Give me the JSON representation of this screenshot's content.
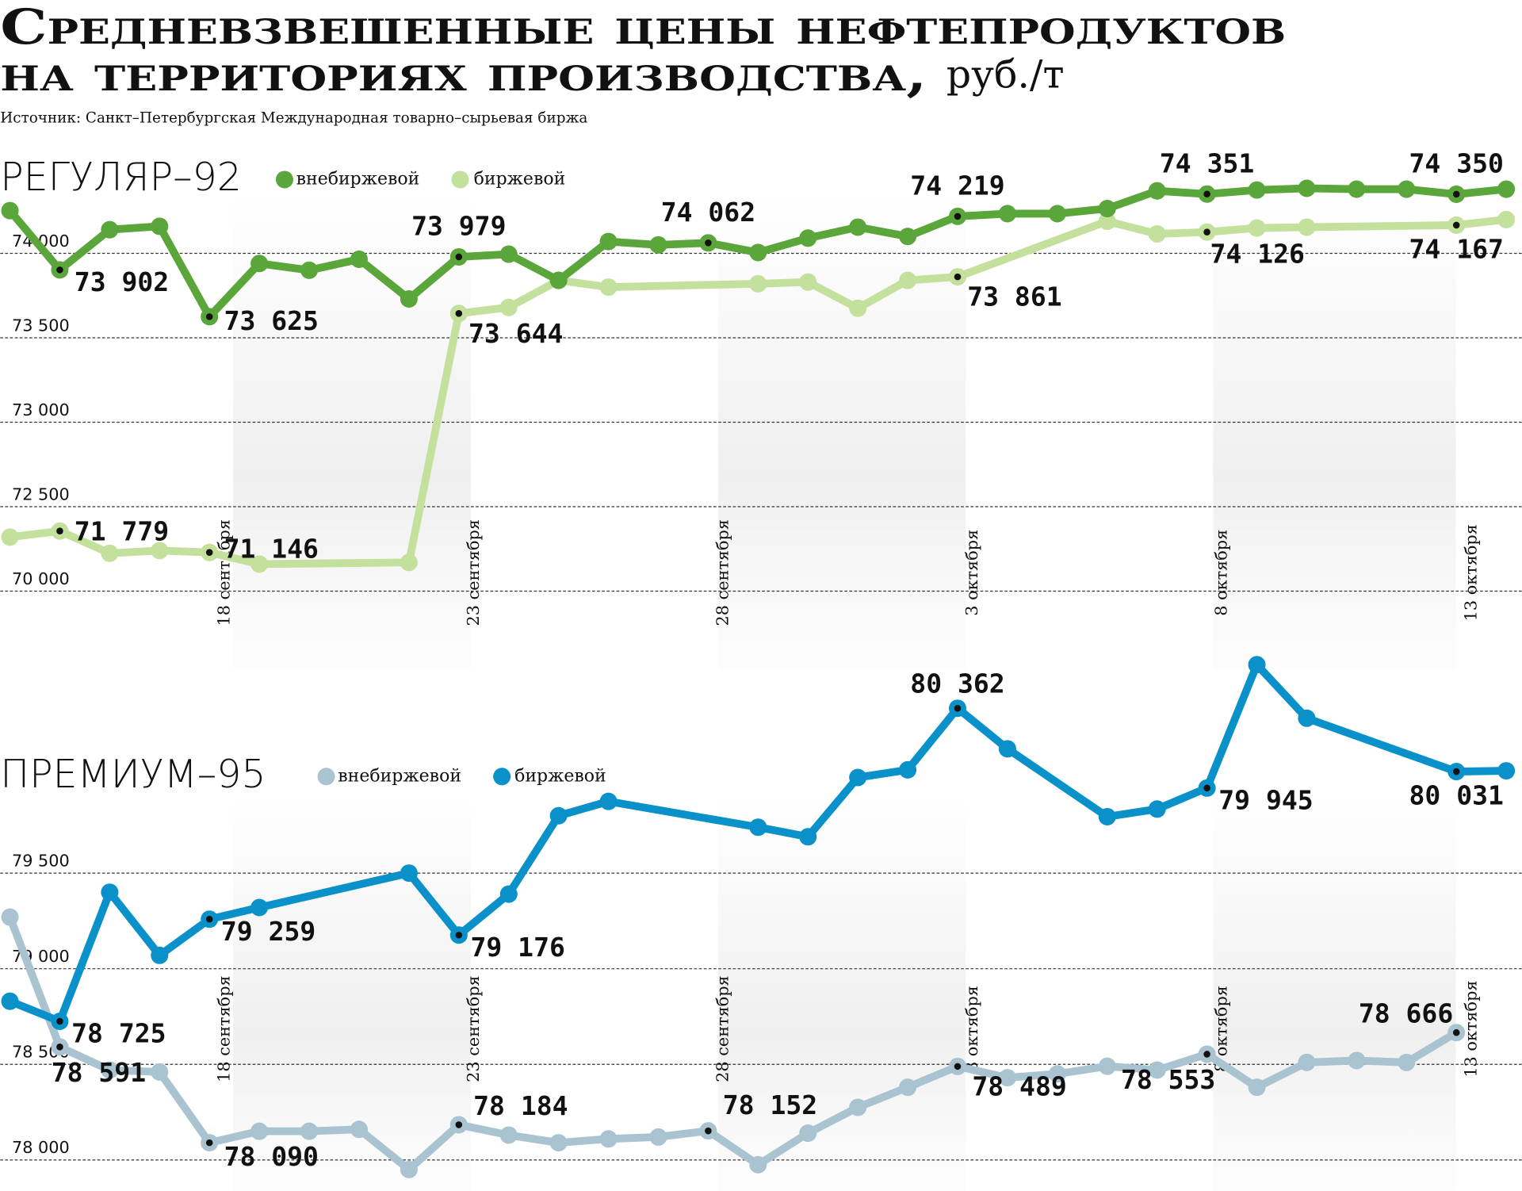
{
  "title": [
    "Средневзвешенные цены нефтепродуктов",
    "на территориях производства,"
  ],
  "unit": "руб./т",
  "source": "Источник: Санкт–Петербургская Международная товарно–сырьевая биржа",
  "chart_data": [
    {
      "type": "line",
      "title": "РЕГУЛЯР–92",
      "categories": [
        null,
        null,
        null,
        null,
        "18 сентября",
        null,
        null,
        null,
        null,
        "23 сентября",
        null,
        null,
        null,
        null,
        "28 сентября",
        null,
        null,
        null,
        null,
        "3 октября",
        null,
        null,
        null,
        null,
        "8 октября",
        null,
        null,
        null,
        null,
        "13 октября",
        null
      ],
      "ylim": [
        69000,
        74500
      ],
      "yticks": [
        {
          "value": 70000,
          "label": "70 000"
        },
        {
          "value": 72500,
          "label": "72 500"
        },
        {
          "value": 73000,
          "label": "73 000"
        },
        {
          "value": 73500,
          "label": "73 500"
        },
        {
          "value": 74000,
          "label": "74 000"
        }
      ],
      "grid": true,
      "series": [
        {
          "name": "внебиржевой",
          "color": "#5aa63a",
          "values": [
            74253,
            73902,
            74140,
            74160,
            73625,
            73940,
            73900,
            73965,
            73730,
            73979,
            73995,
            73840,
            74070,
            74050,
            74062,
            74005,
            74090,
            74155,
            74100,
            74219,
            74235,
            74235,
            74265,
            74370,
            74351,
            74375,
            74385,
            74380,
            74380,
            74350,
            74380
          ],
          "value_labels": [
            null,
            "73 902",
            null,
            null,
            "73 625",
            null,
            null,
            null,
            null,
            "73 979",
            null,
            null,
            null,
            null,
            "74 062",
            null,
            null,
            null,
            null,
            "74 219",
            null,
            null,
            null,
            null,
            "74 351",
            null,
            null,
            null,
            null,
            "74 350",
            null
          ]
        },
        {
          "name": "биржевой",
          "color": "#c3e09c",
          "values": [
            71600,
            71779,
            71120,
            71200,
            71146,
            70800,
            null,
            null,
            70850,
            73644,
            73680,
            73840,
            73800,
            null,
            null,
            73820,
            73830,
            73675,
            73840,
            73861,
            null,
            null,
            74190,
            74115,
            74126,
            74150,
            74155,
            null,
            null,
            74167,
            74200
          ],
          "value_labels": [
            null,
            "71 779",
            null,
            null,
            "71 146",
            null,
            null,
            null,
            null,
            "73 644",
            null,
            null,
            null,
            null,
            null,
            null,
            null,
            null,
            null,
            "73 861",
            null,
            null,
            null,
            null,
            "74 126",
            null,
            null,
            null,
            null,
            "74 167",
            null
          ]
        }
      ]
    },
    {
      "type": "line",
      "title": "ПРЕМИУМ–95",
      "categories": [
        null,
        null,
        null,
        null,
        "18 сентября",
        null,
        null,
        null,
        null,
        "23 сентября",
        null,
        null,
        null,
        null,
        "28 сентября",
        null,
        null,
        null,
        null,
        "3 октября",
        null,
        null,
        null,
        null,
        "8 октября",
        null,
        null,
        null,
        null,
        "13 октября",
        null
      ],
      "ylim": [
        77850,
        80700
      ],
      "yticks": [
        {
          "value": 78000,
          "label": "78 000"
        },
        {
          "value": 78500,
          "label": "78 500"
        },
        {
          "value": 79000,
          "label": "79 000"
        },
        {
          "value": 79500,
          "label": "79 500"
        }
      ],
      "grid": true,
      "series": [
        {
          "name": "внебиржевой",
          "color": "#a9c3d1",
          "values": [
            79270,
            78591,
            78470,
            78460,
            78090,
            78150,
            78150,
            78160,
            77950,
            78184,
            78130,
            78090,
            78110,
            78120,
            78152,
            77975,
            78140,
            78275,
            78380,
            78489,
            78430,
            78450,
            78490,
            78470,
            78553,
            78380,
            78510,
            78520,
            78510,
            78666,
            null
          ],
          "value_labels": [
            null,
            "78 591",
            null,
            null,
            "78 090",
            null,
            null,
            null,
            null,
            "78 184",
            null,
            null,
            null,
            null,
            "78 152",
            null,
            null,
            null,
            null,
            "78 489",
            null,
            null,
            null,
            null,
            "78 553",
            null,
            null,
            null,
            null,
            "78 666",
            null
          ]
        },
        {
          "name": "биржевой",
          "color": "#0a91c9",
          "values": [
            78830,
            78725,
            79400,
            79070,
            79259,
            79320,
            null,
            null,
            79500,
            79176,
            79390,
            79800,
            79875,
            null,
            null,
            79740,
            79690,
            80000,
            80040,
            80362,
            80150,
            null,
            79795,
            79835,
            79945,
            80590,
            80310,
            null,
            null,
            80031,
            80035
          ],
          "value_labels": [
            null,
            "78 725",
            null,
            null,
            "79 259",
            null,
            null,
            null,
            null,
            "79 176",
            null,
            null,
            null,
            null,
            null,
            null,
            null,
            null,
            null,
            "80 362",
            null,
            null,
            null,
            null,
            "79 945",
            null,
            null,
            null,
            null,
            "80 031",
            null
          ]
        }
      ]
    }
  ]
}
